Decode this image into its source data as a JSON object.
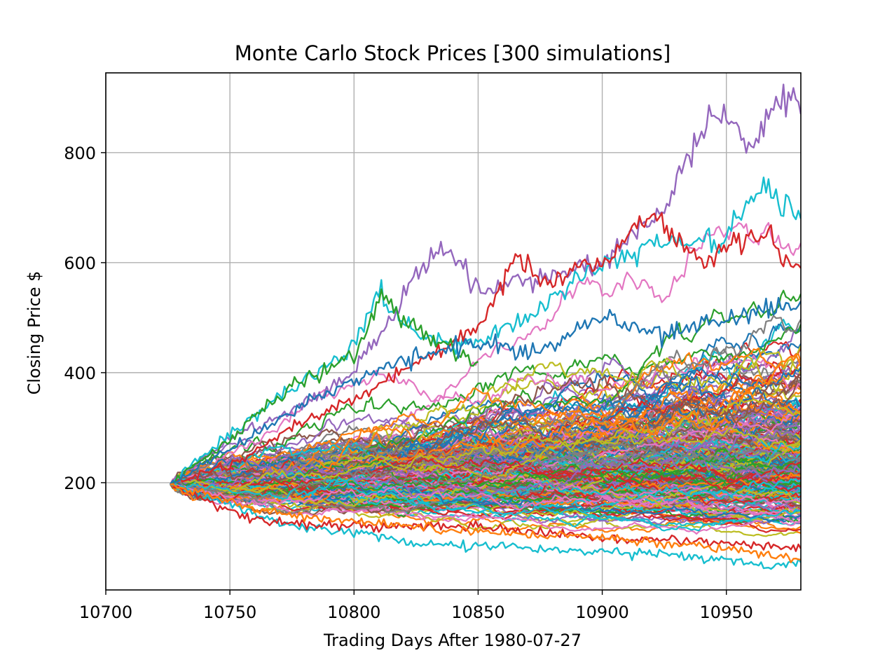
{
  "chart_data": {
    "type": "line",
    "title": "Monte Carlo Stock Prices [300 simulations]",
    "xlabel": "Trading Days After 1980-07-27",
    "ylabel": "Closing Price $",
    "xlim": [
      10700,
      10980
    ],
    "ylim": [
      5,
      945
    ],
    "x_ticks": [
      10700,
      10750,
      10800,
      10850,
      10900,
      10950
    ],
    "y_ticks": [
      200,
      400,
      600,
      800
    ],
    "x_tick_labels": [
      "10700",
      "10750",
      "10800",
      "10850",
      "10900",
      "10950"
    ],
    "y_tick_labels": [
      "200",
      "400",
      "600",
      "800"
    ],
    "grid": true,
    "legend": "none",
    "simulation_count": 300,
    "x_start": 10726,
    "x_end": 10980,
    "start_value": 197,
    "palette": [
      "#1f77b4",
      "#ff7f0e",
      "#2ca02c",
      "#d62728",
      "#9467bd",
      "#8c564b",
      "#e377c2",
      "#7f7f7f",
      "#bcbd22",
      "#17becf"
    ],
    "highlighted_paths": [
      {
        "color": "#9467bd",
        "x": [
          10726,
          10750,
          10775,
          10800,
          10815,
          10825,
          10838,
          10850,
          10875,
          10900,
          10925,
          10945,
          10960,
          10972,
          10980
        ],
        "y": [
          197,
          280,
          330,
          400,
          500,
          580,
          630,
          550,
          580,
          600,
          700,
          880,
          820,
          900,
          870
        ]
      },
      {
        "color": "#17becf",
        "x": [
          10726,
          10750,
          10775,
          10800,
          10811,
          10825,
          10850,
          10875,
          10900,
          10925,
          10950,
          10965,
          10980
        ],
        "y": [
          197,
          290,
          370,
          450,
          545,
          470,
          450,
          520,
          600,
          640,
          640,
          740,
          680
        ]
      },
      {
        "color": "#d62728",
        "x": [
          10726,
          10750,
          10775,
          10800,
          10825,
          10850,
          10866,
          10875,
          10900,
          10920,
          10940,
          10960,
          10980
        ],
        "y": [
          197,
          230,
          300,
          350,
          420,
          480,
          620,
          560,
          600,
          690,
          600,
          660,
          590
        ]
      },
      {
        "color": "#2ca02c",
        "x": [
          10726,
          10750,
          10775,
          10800,
          10811,
          10825,
          10850
        ],
        "y": [
          197,
          280,
          380,
          430,
          540,
          470,
          420
        ]
      },
      {
        "color": "#1f77b4",
        "x": [
          10726,
          10750,
          10775,
          10800,
          10825,
          10850,
          10875,
          10900,
          10925,
          10950,
          10980
        ],
        "y": [
          197,
          260,
          330,
          390,
          430,
          460,
          440,
          500,
          470,
          500,
          530
        ]
      },
      {
        "color": "#17becf",
        "x": [
          10726,
          10750,
          10775,
          10800,
          10825,
          10850,
          10875,
          10900,
          10925,
          10950,
          10965,
          10980
        ],
        "y": [
          197,
          160,
          120,
          110,
          90,
          85,
          80,
          75,
          70,
          60,
          50,
          55
        ]
      },
      {
        "color": "#d62728",
        "x": [
          10726,
          10760,
          10800,
          10850,
          10900,
          10950,
          10980
        ],
        "y": [
          197,
          130,
          120,
          120,
          100,
          90,
          80
        ]
      },
      {
        "color": "#ff7f0e",
        "x": [
          10726,
          10760,
          10800,
          10850,
          10900,
          10950,
          10980
        ],
        "y": [
          197,
          150,
          130,
          110,
          100,
          80,
          60
        ]
      }
    ]
  }
}
